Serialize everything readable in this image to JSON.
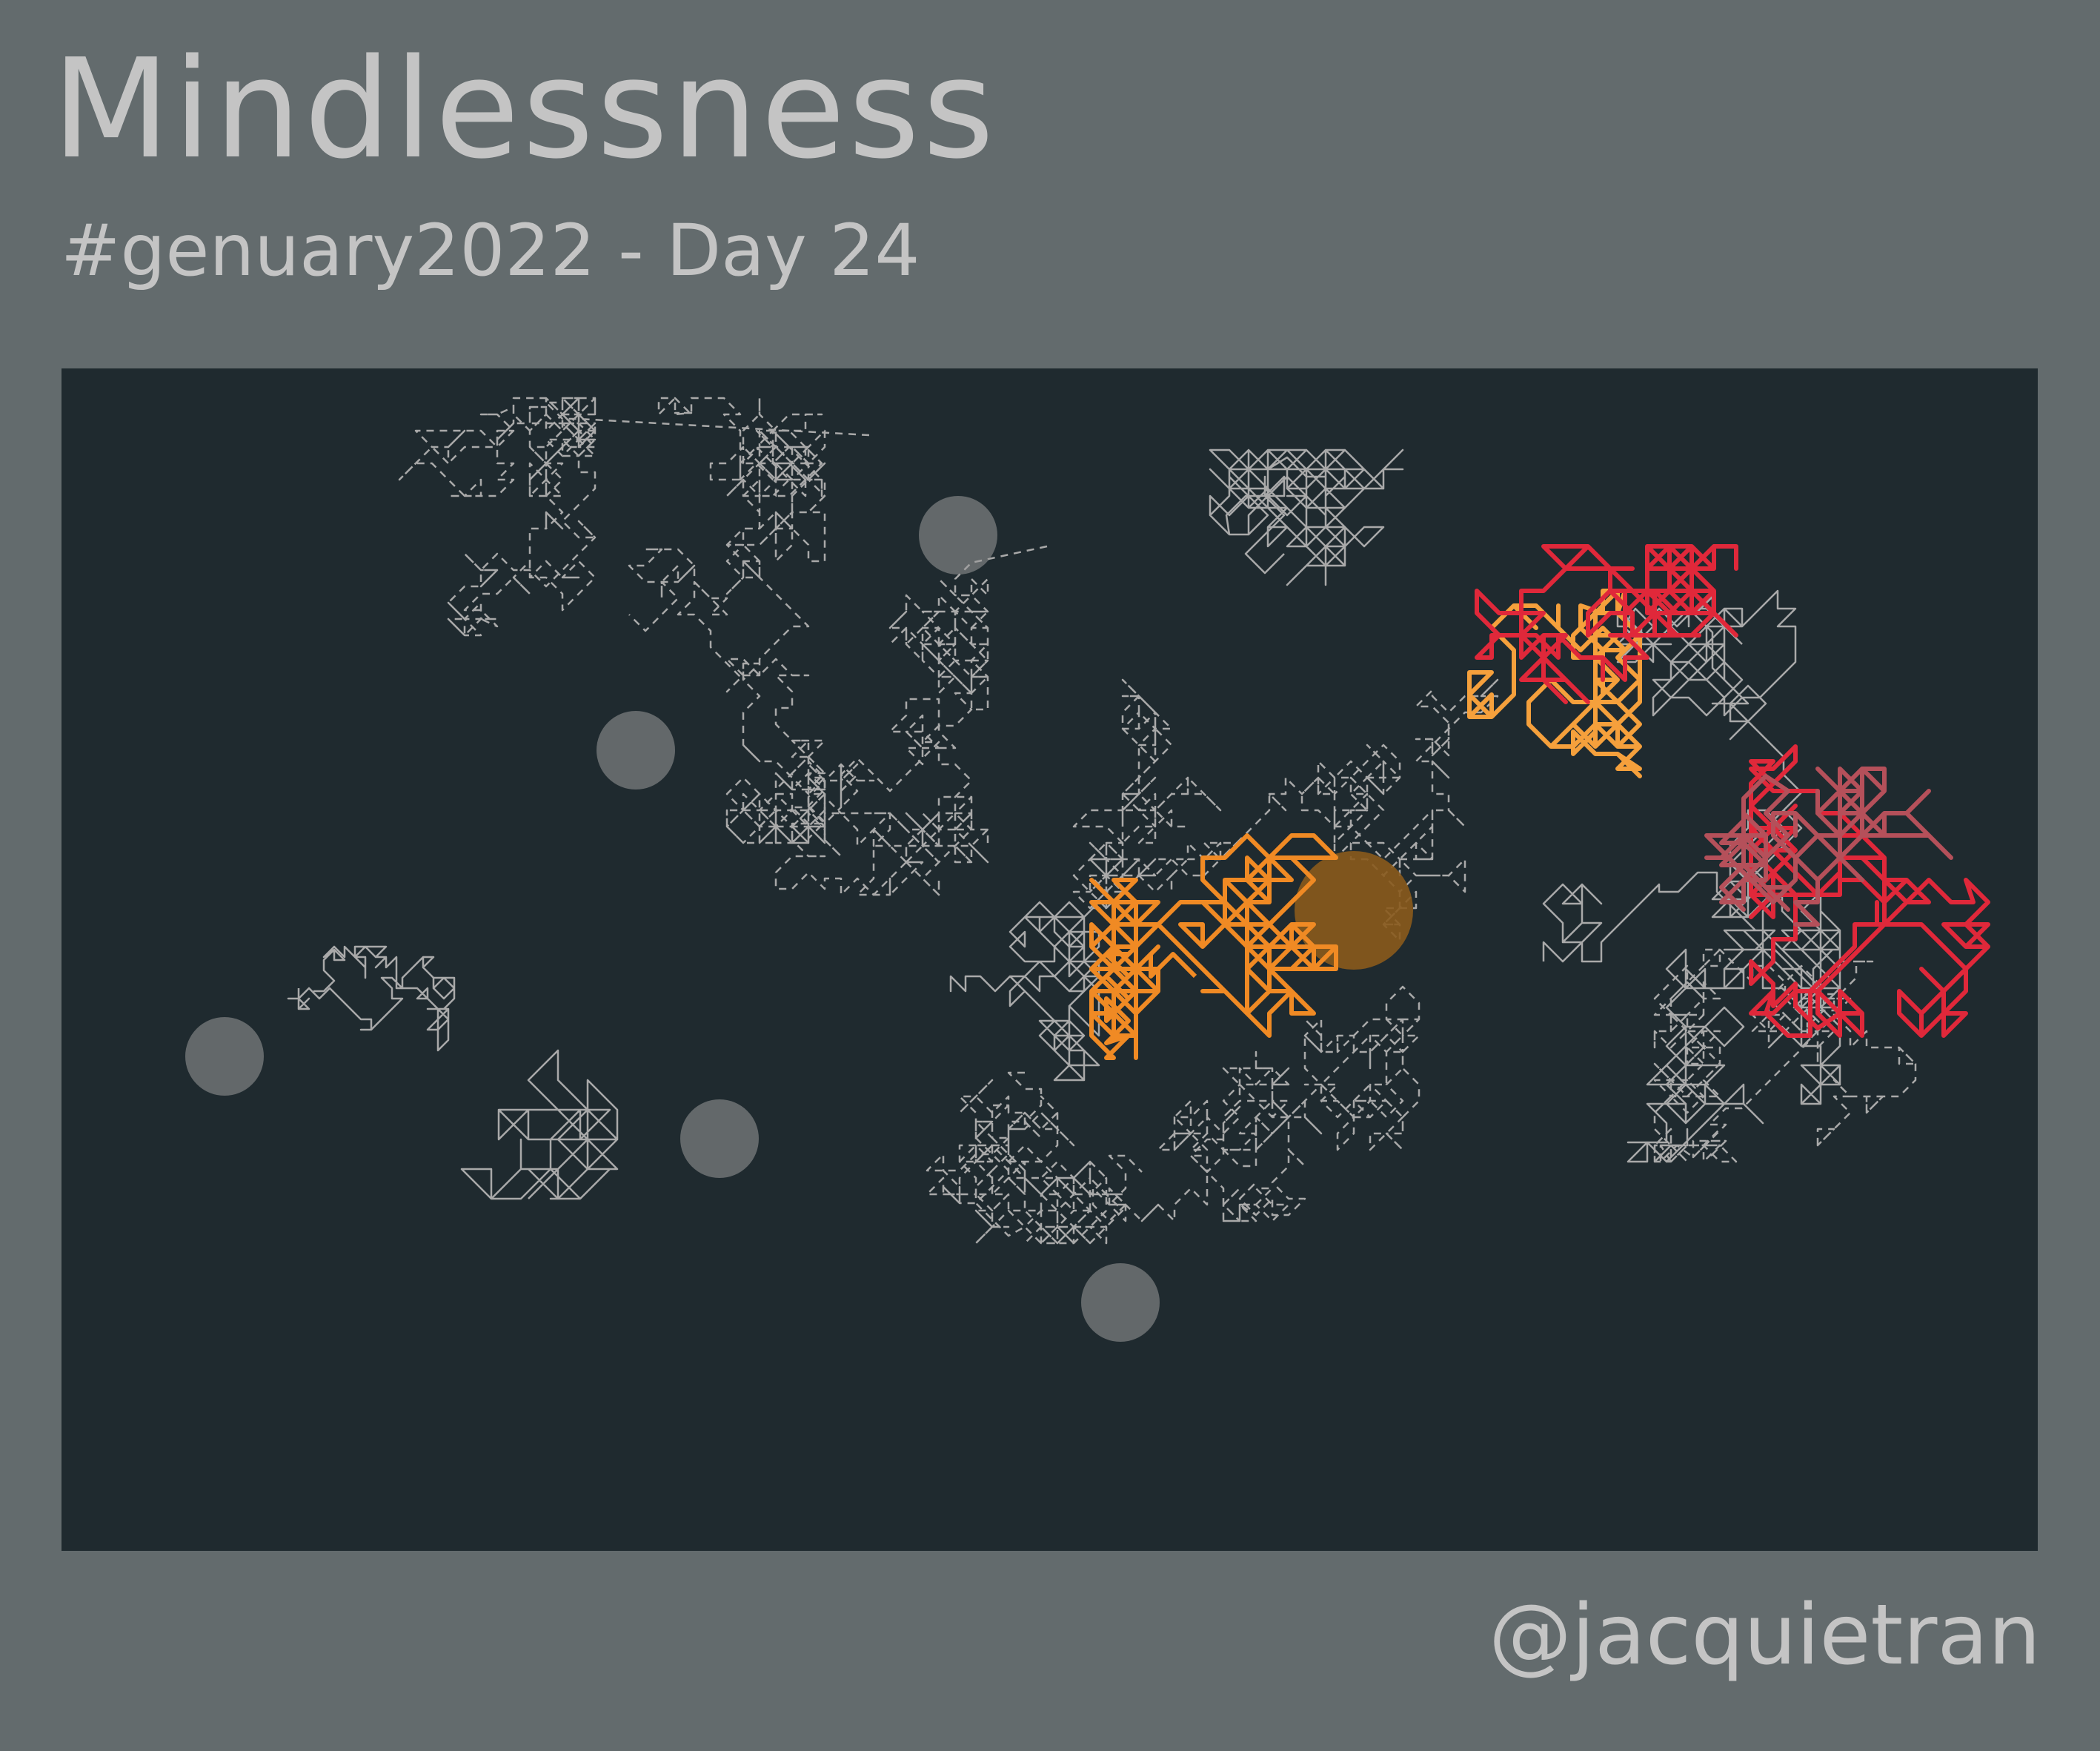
{
  "title": "Mindlessness",
  "subtitle": "#genuary2022 - Day 24",
  "handle": "@jacquietran",
  "palette": {
    "page_background": "#636b6d",
    "panel_background": "#1f2a2f",
    "text": "#c4c4c4",
    "walk_grey": "#a9a9a9",
    "walk_orange": "#f08a24",
    "walk_orange_light": "#f5a03c",
    "walk_red": "#e0283a",
    "walk_rose": "#b5505a",
    "highlight_circle": "#8a5a1c",
    "dim_circle": "#9a9a9a"
  }
}
